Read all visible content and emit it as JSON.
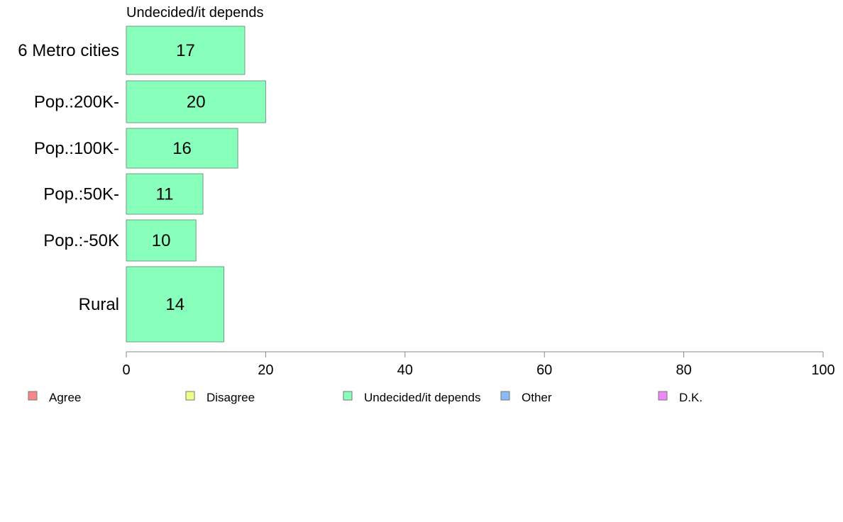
{
  "chart_data": {
    "type": "bar",
    "orientation": "horizontal",
    "title": "Undecided/it depends",
    "categories": [
      "6 Metro cities",
      "Pop.:200K-",
      "Pop.:100K-",
      "Pop.:50K-",
      "Pop.:-50K",
      "Rural"
    ],
    "values": [
      17,
      20,
      16,
      11,
      10,
      14
    ],
    "data_labels": [
      "17",
      "20",
      "16",
      "11",
      "10",
      "14"
    ],
    "series_color": "#88FFBB",
    "bar_border_color": "#6F9F81",
    "xlim": [
      0,
      100
    ],
    "xticks": [
      0,
      20,
      40,
      60,
      80,
      100
    ],
    "xtick_labels": [
      "0",
      "20",
      "40",
      "60",
      "80",
      "100"
    ],
    "grid": false,
    "legend_position": "bottom",
    "legend": [
      {
        "label": "Agree",
        "color": "#F88888"
      },
      {
        "label": "Disagree",
        "color": "#EEFF88"
      },
      {
        "label": "Undecided/it depends",
        "color": "#88FFBB"
      },
      {
        "label": "Other",
        "color": "#88BBF8"
      },
      {
        "label": "D.K.",
        "color": "#EE88F8"
      }
    ]
  }
}
